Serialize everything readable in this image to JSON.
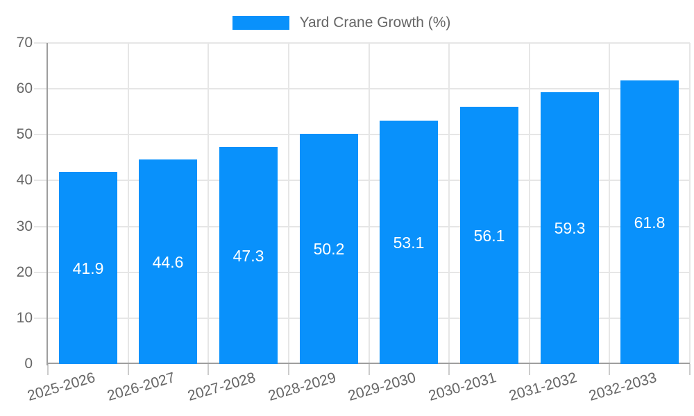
{
  "legend": {
    "label": "Yard Crane Growth (%)"
  },
  "chart_data": {
    "type": "bar",
    "title": "",
    "series_name": "Yard Crane Growth (%)",
    "categories": [
      "2025-2026",
      "2026-2027",
      "2027-2028",
      "2028-2029",
      "2029-2030",
      "2030-2031",
      "2031-2032",
      "2032-2033"
    ],
    "values": [
      41.9,
      44.6,
      47.3,
      50.2,
      53.1,
      56.1,
      59.3,
      61.8
    ],
    "value_labels": [
      "41.9",
      "44.6",
      "47.3",
      "50.2",
      "53.1",
      "56.1",
      "59.3",
      "61.8"
    ],
    "xlabel": "",
    "ylabel": "",
    "ylim": [
      0,
      70
    ],
    "yticks": [
      0,
      10,
      20,
      30,
      40,
      50,
      60,
      70
    ],
    "ytick_labels": [
      "0",
      "10",
      "20",
      "30",
      "40",
      "50",
      "60",
      "70"
    ],
    "grid": true,
    "legend_position": "top",
    "colors": {
      "bar": "#0991fb",
      "value_label": "#ffffff",
      "grid": "#e6e6e6",
      "axis": "#9e9e9e",
      "tick_mark": "#cccccc",
      "tick_label": "#666666",
      "background": "#ffffff"
    }
  }
}
